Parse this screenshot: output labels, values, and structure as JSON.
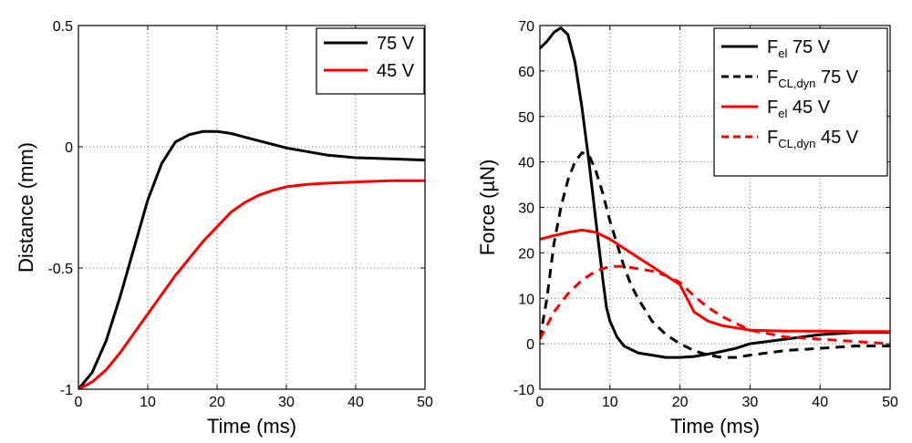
{
  "chart_data": [
    {
      "type": "line",
      "xlabel": "Time (ms)",
      "ylabel": "Distance (mm)",
      "xlim": [
        0,
        50
      ],
      "ylim": [
        -1,
        0.5
      ],
      "xticks": [
        "0",
        "10",
        "20",
        "30",
        "40",
        "50"
      ],
      "yticks": [
        "-1",
        "-0.5",
        "0",
        "0.5"
      ],
      "grid": true,
      "legend_position": "top-right",
      "series": [
        {
          "name": "75 V",
          "color": "#000000",
          "dash": "solid",
          "x": [
            0,
            2,
            4,
            6,
            8,
            10,
            12,
            14,
            16,
            18,
            20,
            22,
            24,
            26,
            28,
            30,
            33,
            36,
            40,
            45,
            50
          ],
          "y": [
            -1,
            -0.93,
            -0.8,
            -0.62,
            -0.42,
            -0.22,
            -0.07,
            0.02,
            0.05,
            0.063,
            0.063,
            0.055,
            0.04,
            0.025,
            0.01,
            -0.005,
            -0.02,
            -0.035,
            -0.045,
            -0.05,
            -0.055
          ]
        },
        {
          "name": "45 V",
          "color": "#ff0000",
          "dash": "solid",
          "x": [
            0,
            2,
            4,
            6,
            8,
            10,
            12,
            14,
            16,
            18,
            20,
            22,
            24,
            26,
            28,
            30,
            33,
            36,
            40,
            45,
            50
          ],
          "y": [
            -1,
            -0.97,
            -0.92,
            -0.85,
            -0.77,
            -0.69,
            -0.61,
            -0.53,
            -0.46,
            -0.39,
            -0.33,
            -0.27,
            -0.23,
            -0.2,
            -0.18,
            -0.165,
            -0.155,
            -0.15,
            -0.145,
            -0.14,
            -0.14
          ]
        }
      ]
    },
    {
      "type": "line",
      "xlabel": "Time (ms)",
      "ylabel": "Force (µN)",
      "xlim": [
        0,
        50
      ],
      "ylim": [
        -10,
        70
      ],
      "xticks": [
        "0",
        "10",
        "20",
        "30",
        "40",
        "50"
      ],
      "yticks": [
        "-10",
        "0",
        "10",
        "20",
        "30",
        "40",
        "50",
        "60",
        "70"
      ],
      "grid": true,
      "legend_position": "top-right",
      "series": [
        {
          "name": "Fel 75 V",
          "name_main": "F",
          "name_sub": "el",
          "name_rest": " 75 V",
          "color": "#000000",
          "dash": "solid",
          "x": [
            0,
            1,
            2,
            3,
            4,
            5,
            6,
            7,
            8,
            9,
            9.5,
            10,
            11,
            12,
            14,
            16,
            18,
            20,
            22,
            25,
            28,
            30,
            35,
            40,
            45,
            50
          ],
          "y": [
            65,
            66.5,
            68.5,
            69.5,
            68,
            62,
            52,
            40,
            27,
            14,
            8,
            5,
            1.5,
            -0.5,
            -2,
            -2.5,
            -3,
            -3,
            -2.8,
            -2,
            -1,
            0,
            1,
            2,
            2.5,
            2.5
          ]
        },
        {
          "name": "FCL,dyn 75 V",
          "name_main": "F",
          "name_sub": "CL,dyn",
          "name_rest": " 75 V",
          "color": "#000000",
          "dash": "dashed",
          "x": [
            0,
            1,
            2,
            3,
            4,
            5,
            6,
            7,
            8,
            9,
            10,
            11,
            12,
            13,
            14,
            16,
            18,
            20,
            22,
            24,
            26,
            28,
            30,
            35,
            40,
            45,
            50
          ],
          "y": [
            1,
            10,
            22,
            30,
            36,
            40,
            42,
            41.5,
            38,
            33,
            27,
            22,
            17,
            13,
            10,
            5,
            2,
            0,
            -1.5,
            -2.5,
            -3,
            -3,
            -2.5,
            -1.5,
            -1,
            -0.5,
            -0.5
          ]
        },
        {
          "name": "Fel 45 V",
          "name_main": "F",
          "name_sub": "el",
          "name_rest": " 45 V",
          "color": "#ff0000",
          "dash": "solid",
          "x": [
            0,
            2,
            4,
            6,
            8,
            10,
            12,
            14,
            16,
            18,
            20,
            21,
            22,
            24,
            26,
            28,
            30,
            35,
            40,
            45,
            50
          ],
          "y": [
            23,
            23.8,
            24.5,
            25,
            24.5,
            23,
            21,
            19,
            17,
            15,
            13,
            10,
            7,
            5,
            4,
            3.5,
            3,
            2.8,
            2.8,
            2.7,
            2.7
          ]
        },
        {
          "name": "FCL,dyn 45 V",
          "name_main": "F",
          "name_sub": "CL,dyn",
          "name_rest": " 45 V",
          "color": "#ff0000",
          "dash": "dashed",
          "x": [
            0,
            1,
            2,
            4,
            6,
            8,
            10,
            12,
            14,
            16,
            18,
            20,
            22,
            24,
            26,
            28,
            30,
            35,
            40,
            45,
            50
          ],
          "y": [
            1,
            4,
            7,
            11,
            14,
            16,
            17,
            17,
            16.5,
            16,
            15,
            13.5,
            10.5,
            8,
            6,
            4.5,
            3,
            1.5,
            1,
            0.5,
            0
          ]
        }
      ]
    }
  ]
}
